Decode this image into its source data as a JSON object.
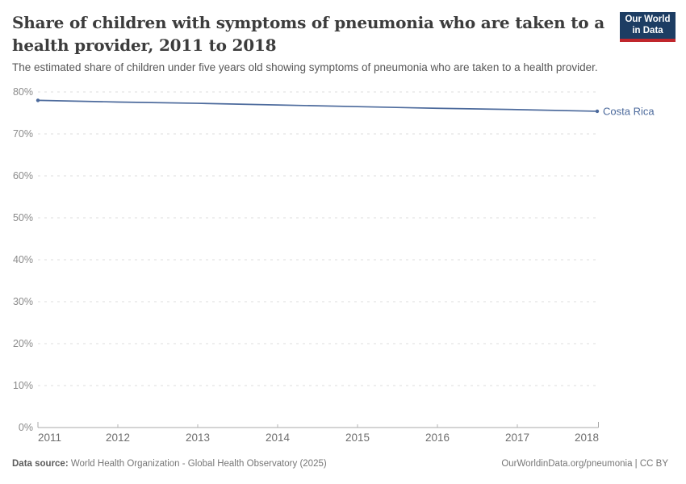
{
  "header": {
    "title": "Share of children with symptoms of pneumonia who are taken to a health provider, 2011 to 2018",
    "subtitle": "The estimated share of children under five years old showing symptoms of pneumonia who are taken to a health provider."
  },
  "logo": {
    "line1": "Our World",
    "line2": "in Data",
    "background_color": "#1d3d63",
    "accent_color": "#c0262c"
  },
  "chart_data": {
    "type": "line",
    "title": "Share of children with symptoms of pneumonia who are taken to a health provider, 2011 to 2018",
    "subtitle": "The estimated share of children under five years old showing symptoms of pneumonia who are taken to a health provider.",
    "x": [
      2011,
      2012,
      2013,
      2014,
      2015,
      2016,
      2017,
      2018
    ],
    "series": [
      {
        "name": "Costa Rica",
        "color": "#4C6A9C",
        "values": [
          78.0,
          77.6,
          77.3,
          76.9,
          76.5,
          76.1,
          75.8,
          75.4
        ]
      }
    ],
    "ylim": [
      0,
      80
    ],
    "yticks": [
      0,
      10,
      20,
      30,
      40,
      50,
      60,
      70,
      80
    ],
    "ytick_suffix": "%",
    "xlabel": "",
    "ylabel": "",
    "grid": true,
    "grid_style": "dashed",
    "legend_position": "line-end-label"
  },
  "footer": {
    "datasource_label": "Data source:",
    "datasource_text": "World Health Organization - Global Health Observatory (2025)",
    "right": "OurWorldinData.org/pneumonia | CC BY"
  }
}
